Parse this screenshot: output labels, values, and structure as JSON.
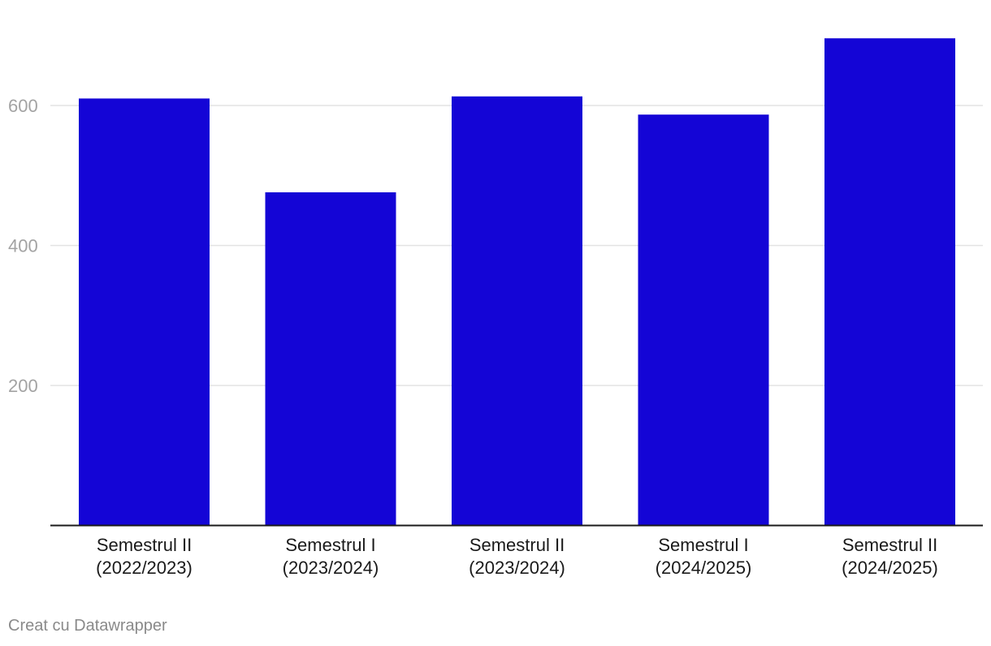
{
  "chart_data": {
    "type": "bar",
    "categories": [
      [
        "Semestrul II",
        "(2022/2023)"
      ],
      [
        "Semestrul I",
        "(2023/2024)"
      ],
      [
        "Semestrul II",
        "(2023/2024)"
      ],
      [
        "Semestrul I",
        "(2024/2025)"
      ],
      [
        "Semestrul II",
        "(2024/2025)"
      ]
    ],
    "values": [
      610,
      476,
      613,
      587,
      696
    ],
    "yticks": [
      200,
      400,
      600
    ],
    "ylim": [
      0,
      700
    ],
    "grid": true,
    "bar_color": "#1405d6",
    "title": "",
    "xlabel": "",
    "ylabel": ""
  },
  "credit": "Creat cu Datawrapper"
}
